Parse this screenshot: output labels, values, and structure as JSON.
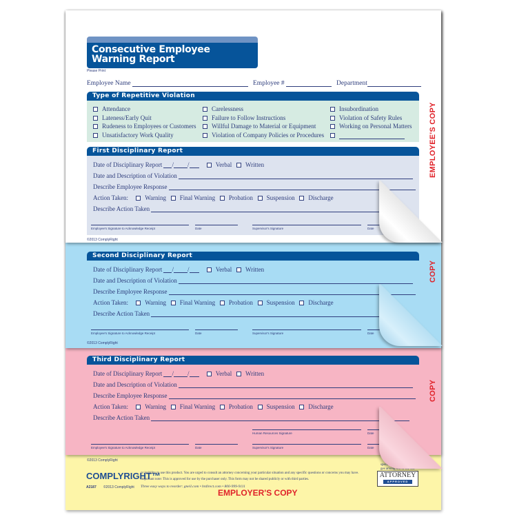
{
  "title": "Consecutive Employee Warning Report",
  "title_line1": "Consecutive Employee",
  "title_line2": "Warning Report",
  "please_print": "Please Print",
  "fields": {
    "name": "Employee Name",
    "number": "Employee #",
    "department": "Department"
  },
  "violation_section": {
    "title": "Type of Repetitive Violation",
    "columns": [
      [
        "Attendance",
        "Lateness/Early Quit",
        "Rudeness to Employees or Customers",
        "Unsatisfactory Work Quality"
      ],
      [
        "Carelessness",
        "Failure to Follow Instructions",
        "Willful Damage to Material or Equipment",
        "Violation of Company Policies or Procedures"
      ],
      [
        "Insubordination",
        "Violation of Safety Rules",
        "Working on Personal Matters",
        ""
      ]
    ]
  },
  "report_labels": {
    "date": "Date of Disciplinary Report",
    "slash": "/",
    "verbal": "Verbal",
    "written": "Written",
    "violation": "Date and Description of Violation",
    "response": "Describe Employee Response",
    "action": "Action Taken:",
    "actions": [
      "Warning",
      "Final Warning",
      "Probation",
      "Suspension",
      "Discharge"
    ],
    "describe_action": "Describe Action Taken",
    "emp_sig": "Employee's Signature to Acknowledge Receipt",
    "date_label": "Date",
    "sup_sig": "Supervisor's Signature",
    "hr_sig": "Human Resources Signature"
  },
  "reports": [
    {
      "title": "First Disciplinary Report"
    },
    {
      "title": "Second Disciplinary Report"
    },
    {
      "title": "Third Disciplinary Report"
    }
  ],
  "copyright": "©2013 ComplyRight",
  "copies": {
    "employee": "EMPLOYEE'S COPY",
    "blue": "COPY",
    "pink": "COPY",
    "employer": "EMPLOYER'S COPY"
  },
  "footer": {
    "logo": "COMPLYRIGHT™",
    "legal1": "specific facts or services.",
    "legal2": "ges arising out of the use",
    "legal3": "or inability to use this product. You are urged to consult an attorney concerning your particular situation and any specific questions or concerns you may have.",
    "legal4": "Important note: This is approved for use by the purchaser only. This form may not be shared publicly or with third parties.",
    "sku": "A2187",
    "copyright": "©2013 ComplyRight",
    "reorder": "Three easy ways to reorder: gneil.com • hrdirect.com • 800-999-9111",
    "badge_top": "ATTORNEY",
    "badge_bottom": "APPROVED"
  },
  "colors": {
    "header": "#06549a",
    "blue_copy": "#a8dcf4",
    "pink_copy": "#f7b5c4",
    "yellow_copy": "#fdf5a8",
    "copy_label": "#e0232a"
  }
}
